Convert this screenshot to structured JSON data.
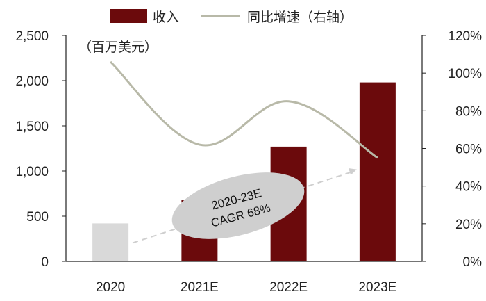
{
  "chart_data": {
    "type": "bar",
    "categories": [
      "2020",
      "2021E",
      "2022E",
      "2023E"
    ],
    "unit_label": "（百万美元）",
    "legend": {
      "bar": "收入",
      "line": "同比增速（右轴）"
    },
    "series": [
      {
        "name": "收入",
        "type": "bar",
        "axis": "left",
        "values": [
          420,
          680,
          1270,
          1980
        ]
      },
      {
        "name": "同比增速（右轴）",
        "type": "line",
        "axis": "right",
        "values": [
          1.06,
          0.62,
          0.85,
          0.55
        ]
      }
    ],
    "y_left": {
      "ylim": [
        0,
        2500
      ],
      "ticks": [
        "0",
        "500",
        "1,000",
        "1,500",
        "2,000",
        "2,500"
      ]
    },
    "y_right": {
      "ylim": [
        0,
        1.2
      ],
      "ticks": [
        "0%",
        "20%",
        "40%",
        "60%",
        "80%",
        "100%",
        "120%"
      ]
    },
    "annotation": {
      "line1": "2020-23E",
      "line2": "CAGR 68%"
    },
    "grid": false,
    "legend_position": "top",
    "colors": {
      "bar": "#6b0a0c",
      "bar_first": "#d9d9d9",
      "line": "#b8b9a8",
      "arrow": "#cfcfcf",
      "ellipse": "#cfcfcf",
      "axis": "#222222"
    }
  }
}
